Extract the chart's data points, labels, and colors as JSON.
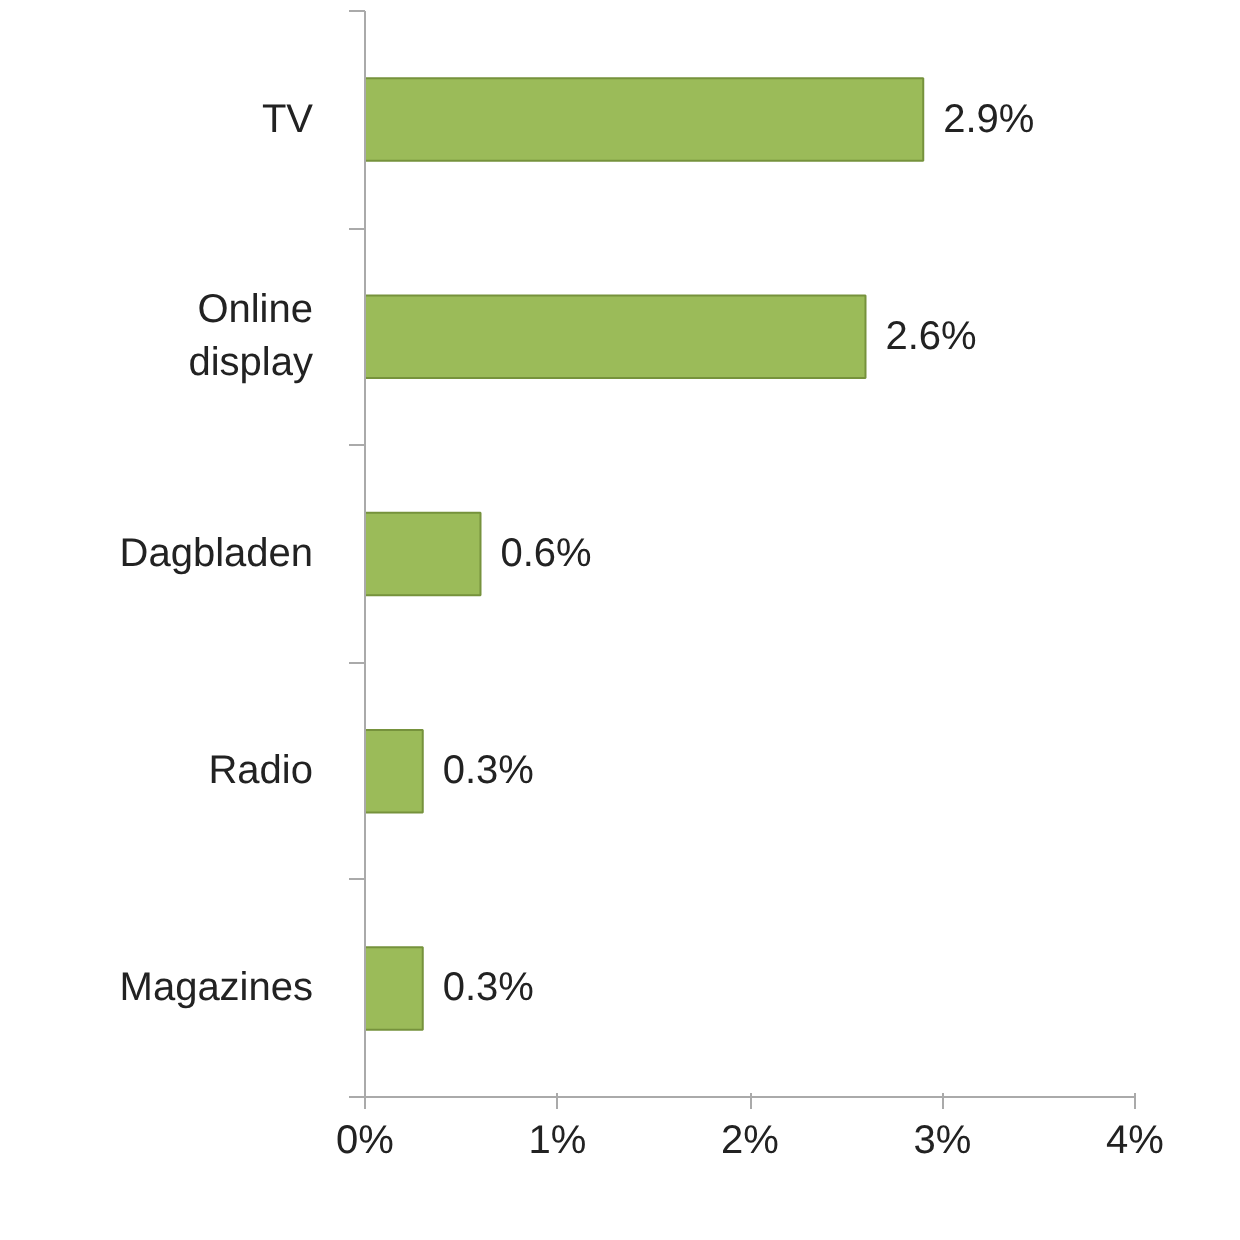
{
  "chart_data": {
    "type": "bar",
    "orientation": "horizontal",
    "categories": [
      "TV",
      "Online display",
      "Dagbladen",
      "Radio",
      "Magazines"
    ],
    "values": [
      2.9,
      2.6,
      0.6,
      0.3,
      0.3
    ],
    "value_labels": [
      "2.9%",
      "2.6%",
      "0.6%",
      "0.3%",
      "0.3%"
    ],
    "color": "#9bbb59",
    "xlim": [
      0,
      4
    ],
    "xticks": [
      {
        "value": 0,
        "label": "0%"
      },
      {
        "value": 1,
        "label": "1%"
      },
      {
        "value": 2,
        "label": "2%"
      },
      {
        "value": 3,
        "label": "3%"
      },
      {
        "value": 4,
        "label": "4%"
      }
    ],
    "grid": false
  }
}
